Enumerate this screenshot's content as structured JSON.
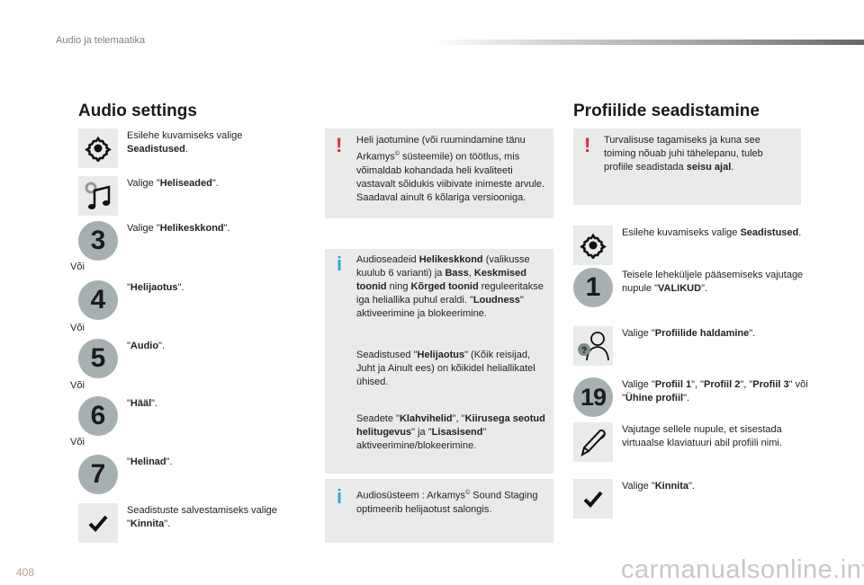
{
  "header": {
    "section": "Audio ja telemaatika",
    "page_number": "408"
  },
  "left": {
    "title": "Audio settings",
    "steps": [
      {
        "icon": "gear-icon",
        "text": [
          {
            "t": "Esilehe kuvamiseks valige "
          },
          {
            "t": "Seadistused",
            "b": true
          },
          {
            "t": "."
          }
        ]
      },
      {
        "icon": "music-settings-icon",
        "text": [
          {
            "t": "Valige \""
          },
          {
            "t": "Heliseaded",
            "b": true
          },
          {
            "t": "\"."
          }
        ]
      },
      {
        "icon": "number-3",
        "label": "3",
        "text": [
          {
            "t": "Valige \""
          },
          {
            "t": "Helikeskkond",
            "b": true
          },
          {
            "t": "\"."
          }
        ]
      },
      {
        "icon": "number-4",
        "label": "4",
        "text": [
          {
            "t": "\""
          },
          {
            "t": "Helijaotus",
            "b": true
          },
          {
            "t": "\"."
          }
        ]
      },
      {
        "icon": "number-5",
        "label": "5",
        "text": [
          {
            "t": "\""
          },
          {
            "t": "Audio",
            "b": true
          },
          {
            "t": "\"."
          }
        ]
      },
      {
        "icon": "number-6",
        "label": "6",
        "text": [
          {
            "t": "\""
          },
          {
            "t": "Hääl",
            "b": true
          },
          {
            "t": "\"."
          }
        ]
      },
      {
        "icon": "number-7",
        "label": "7",
        "text": [
          {
            "t": "\""
          },
          {
            "t": "Helinad",
            "b": true
          },
          {
            "t": "\"."
          }
        ]
      },
      {
        "icon": "checkmark-icon",
        "text": [
          {
            "t": "Seadistuste salvestamiseks valige \""
          },
          {
            "t": "Kinnita",
            "b": true
          },
          {
            "t": "\"."
          }
        ]
      }
    ],
    "or_label": "Või"
  },
  "middle": {
    "warning": {
      "mark": "!",
      "color": "#e3273b",
      "text": [
        {
          "t": "Heli jaotumine (või ruumindamine tänu Arkamys"
        },
        {
          "t": "©",
          "sup": true
        },
        {
          "t": " süsteemile) on töötlus, mis võimaldab kohandada heli kvaliteeti vastavalt sõidukis viibivate inimeste arvule."
        },
        {
          "t": "\n"
        },
        {
          "t": "Saadaval ainult 6 kõlariga versiooniga."
        }
      ]
    },
    "info1": {
      "mark": "i",
      "color": "#36a8e0",
      "p1": [
        {
          "t": "Audioseadeid "
        },
        {
          "t": "Helikeskkond",
          "b": true
        },
        {
          "t": " (valikusse kuulub 6 varianti) ja "
        },
        {
          "t": "Bass",
          "b": true
        },
        {
          "t": ", "
        },
        {
          "t": "Keskmised toonid",
          "b": true
        },
        {
          "t": " ning "
        },
        {
          "t": "Kõrged toonid",
          "b": true
        },
        {
          "t": " reguleeritakse iga heliallika puhul eraldi. \""
        },
        {
          "t": "Loudness",
          "b": true
        },
        {
          "t": "\" aktiveerimine ja blokeerimine."
        }
      ],
      "p2": [
        {
          "t": "Seadistused \""
        },
        {
          "t": "Helijaotus",
          "b": true
        },
        {
          "t": "\" (Kõik reisijad, Juht ja Ainult ees) on kõikidel heliallikatel ühised."
        }
      ],
      "p3": [
        {
          "t": "Seadete \""
        },
        {
          "t": "Klahvihelid",
          "b": true
        },
        {
          "t": "\", \""
        },
        {
          "t": "Kiirusega seotud helitugevus",
          "b": true
        },
        {
          "t": "\" ja \""
        },
        {
          "t": "Lisasisend",
          "b": true
        },
        {
          "t": "\" aktiveerimine/blokeerimine."
        }
      ]
    },
    "info2": {
      "mark": "i",
      "text": [
        {
          "t": "Audiosüsteem : Arkamys"
        },
        {
          "t": "©",
          "sup": true
        },
        {
          "t": " Sound Staging optimeerib helijaotust salongis."
        }
      ]
    }
  },
  "right": {
    "title": "Profiilide seadistamine",
    "warning": {
      "mark": "!",
      "text": [
        {
          "t": "Turvalisuse tagamiseks ja kuna see toiming nõuab juhi tähelepanu, tuleb profiile seadistada "
        },
        {
          "t": "seisu ajal",
          "b": true
        },
        {
          "t": "."
        }
      ]
    },
    "steps": [
      {
        "icon": "gear-icon",
        "text": [
          {
            "t": "Esilehe kuvamiseks valige "
          },
          {
            "t": "Seadistused",
            "b": true
          },
          {
            "t": "."
          }
        ]
      },
      {
        "icon": "number-1",
        "label": "1",
        "text": [
          {
            "t": "Teisele leheküljele pääsemiseks vajutage nupule \""
          },
          {
            "t": "VALIKUD",
            "b": true
          },
          {
            "t": "\"."
          }
        ]
      },
      {
        "icon": "profile-question-icon",
        "text": [
          {
            "t": "Valige \""
          },
          {
            "t": "Profiilide haldamine",
            "b": true
          },
          {
            "t": "\"."
          }
        ]
      },
      {
        "icon": "number-19",
        "label": "19",
        "text": [
          {
            "t": "Valige \""
          },
          {
            "t": "Profiil 1",
            "b": true
          },
          {
            "t": "\", \""
          },
          {
            "t": "Profiil 2",
            "b": true
          },
          {
            "t": "\", \""
          },
          {
            "t": "Profiil 3",
            "b": true
          },
          {
            "t": "\" või \""
          },
          {
            "t": "Ühine profiil",
            "b": true
          },
          {
            "t": "\"."
          }
        ]
      },
      {
        "icon": "pencil-icon",
        "text": [
          {
            "t": "Vajutage sellele nupule, et sisestada virtuaalse klaviatuuri abil profiili nimi."
          }
        ]
      },
      {
        "icon": "checkmark-icon",
        "text": [
          {
            "t": "Valige \""
          },
          {
            "t": "Kinnita",
            "b": true
          },
          {
            "t": "\"."
          }
        ]
      }
    ]
  },
  "watermark": "carmanualsonline.info"
}
